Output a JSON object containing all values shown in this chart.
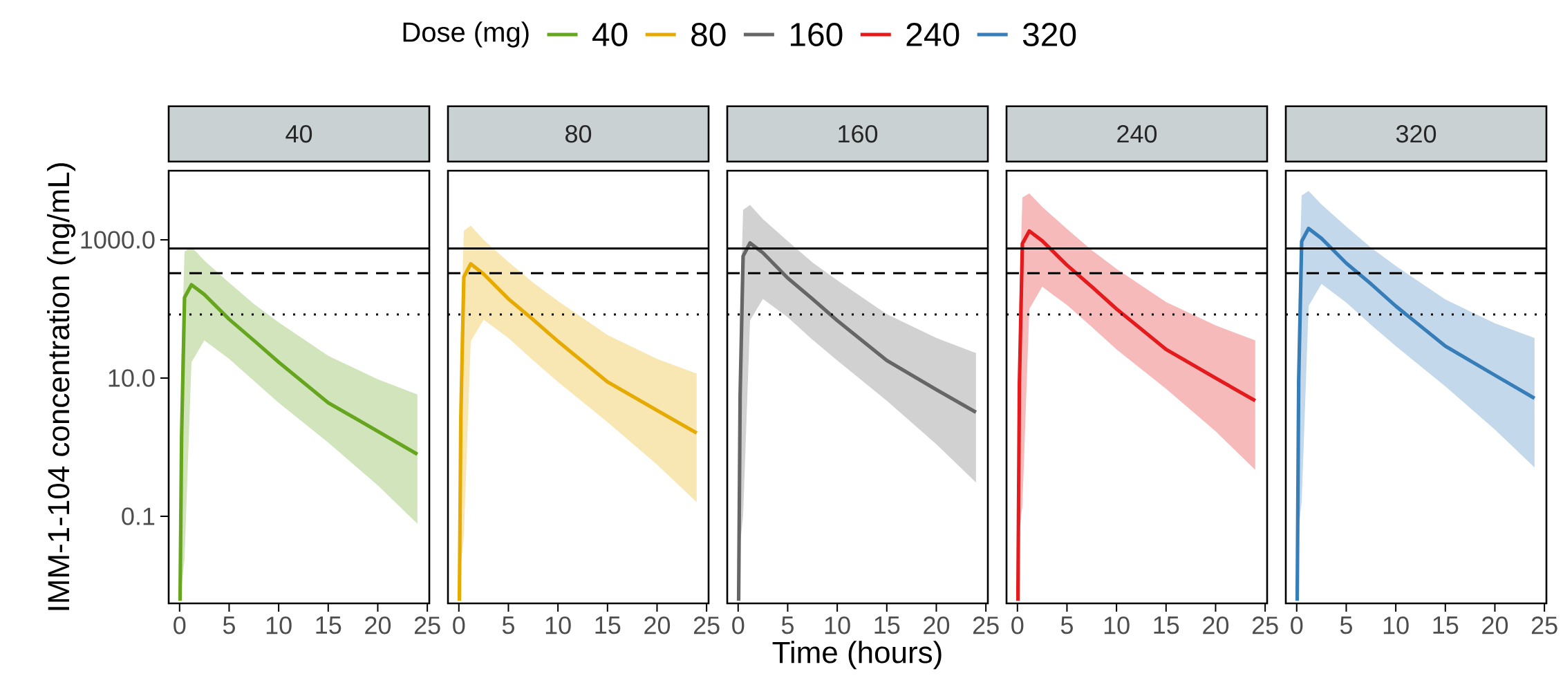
{
  "chart_data": [
    {
      "type": "line",
      "title": "40",
      "legend": "top",
      "legend_title": "Dose (mg)",
      "ylabel": "IMM-1-104 concentration (ng/mL)",
      "log": true,
      "series": [
        {
          "name": "40",
          "color": "#66a61e",
          "x": [
            0.05,
            0.2,
            0.5,
            1.2,
            2.5,
            5,
            7.5,
            10,
            15,
            20,
            24
          ],
          "values": [
            0.006,
            1.4,
            146,
            224,
            162,
            71,
            35,
            17,
            4.4,
            1.7,
            0.79
          ],
          "upper": [
            0.006,
            20,
            680,
            790,
            500,
            240,
            118,
            64,
            21,
            9.6,
            5.8
          ],
          "lower": [
            0.006,
            0.01,
            0.024,
            17,
            35,
            19,
            9.1,
            4.4,
            1.17,
            0.28,
            0.078
          ]
        }
      ],
      "xlim": [
        -1.1,
        25.2
      ],
      "xticks": [
        0,
        5,
        10,
        15,
        20,
        25
      ],
      "ylim": [
        0.0055,
        10000
      ],
      "yticks": [
        {
          "value": 0.1,
          "label": "0.1"
        },
        {
          "value": 10,
          "label": "10.0"
        },
        {
          "value": 1000,
          "label": "1000.0"
        }
      ],
      "ref_lines": [
        {
          "axis": "y",
          "value": 750,
          "color": "#000000",
          "line_style": "solid"
        },
        {
          "axis": "y",
          "value": 330,
          "color": "#000000",
          "line_style": "dashed"
        },
        {
          "axis": "y",
          "value": 83,
          "color": "#000000",
          "line_style": "dotted"
        }
      ]
    },
    {
      "type": "line",
      "title": "80",
      "log": true,
      "tick_labels": "x",
      "series": [
        {
          "name": "80",
          "color": "#e6ab02",
          "x": [
            0.05,
            0.2,
            0.5,
            1.2,
            2.5,
            5,
            7.5,
            10,
            15,
            20,
            24
          ],
          "values": [
            0.006,
            2.8,
            290,
            450,
            320,
            140,
            70,
            34,
            8.8,
            3.4,
            1.6
          ],
          "upper": [
            0.006,
            40,
            1360,
            1600,
            1000,
            480,
            240,
            130,
            42,
            19,
            11.6
          ],
          "lower": [
            0.006,
            0.02,
            0.05,
            34,
            70,
            38,
            18,
            8.8,
            2.3,
            0.56,
            0.16
          ]
        }
      ],
      "xlim": [
        -1.1,
        25.2
      ],
      "xticks": [
        0,
        5,
        10,
        15,
        20,
        25
      ],
      "ylim": [
        0.0055,
        10000
      ],
      "ref_lines": [
        {
          "axis": "y",
          "value": 750,
          "color": "#000000",
          "line_style": "solid"
        },
        {
          "axis": "y",
          "value": 330,
          "color": "#000000",
          "line_style": "dashed"
        },
        {
          "axis": "y",
          "value": 83,
          "color": "#000000",
          "line_style": "dotted"
        }
      ]
    },
    {
      "type": "line",
      "title": "160",
      "xlabel": "Time (hours)",
      "log": true,
      "tick_labels": "x",
      "series": [
        {
          "name": "160",
          "color": "#666666",
          "x": [
            0.05,
            0.2,
            0.5,
            1.2,
            2.5,
            5,
            7.5,
            10,
            15,
            20,
            24
          ],
          "values": [
            0.006,
            5.6,
            580,
            900,
            650,
            280,
            140,
            68,
            18,
            6.8,
            3.2
          ],
          "upper": [
            0.006,
            80,
            2700,
            3200,
            2000,
            960,
            470,
            260,
            84,
            38,
            23
          ],
          "lower": [
            0.006,
            0.04,
            0.1,
            68,
            140,
            76,
            36,
            18,
            4.7,
            1.1,
            0.31
          ]
        }
      ],
      "xlim": [
        -1.1,
        25.2
      ],
      "xticks": [
        0,
        5,
        10,
        15,
        20,
        25
      ],
      "ylim": [
        0.0055,
        10000
      ],
      "ref_lines": [
        {
          "axis": "y",
          "value": 750,
          "color": "#000000",
          "line_style": "solid"
        },
        {
          "axis": "y",
          "value": 330,
          "color": "#000000",
          "line_style": "dashed"
        },
        {
          "axis": "y",
          "value": 83,
          "color": "#000000",
          "line_style": "dotted"
        }
      ]
    },
    {
      "type": "line",
      "title": "240",
      "log": true,
      "tick_labels": "x",
      "series": [
        {
          "name": "240",
          "color": "#e41a1c",
          "x": [
            0.05,
            0.2,
            0.5,
            1.2,
            2.5,
            5,
            7.5,
            10,
            15,
            20,
            24
          ],
          "values": [
            0.006,
            8.4,
            880,
            1340,
            970,
            430,
            210,
            100,
            26,
            10,
            4.7
          ],
          "upper": [
            0.006,
            120,
            4100,
            4700,
            3000,
            1440,
            710,
            380,
            126,
            58,
            35
          ],
          "lower": [
            0.006,
            0.06,
            0.14,
            100,
            210,
            114,
            55,
            26,
            7,
            1.7,
            0.47
          ]
        }
      ],
      "xlim": [
        -1.1,
        25.2
      ],
      "xticks": [
        0,
        5,
        10,
        15,
        20,
        25
      ],
      "ylim": [
        0.0055,
        10000
      ],
      "ref_lines": [
        {
          "axis": "y",
          "value": 750,
          "color": "#000000",
          "line_style": "solid"
        },
        {
          "axis": "y",
          "value": 330,
          "color": "#000000",
          "line_style": "dashed"
        },
        {
          "axis": "y",
          "value": 83,
          "color": "#000000",
          "line_style": "dotted"
        }
      ]
    },
    {
      "type": "line",
      "title": "320",
      "log": true,
      "tick_labels": "x",
      "series": [
        {
          "name": "320",
          "color": "#377eb8",
          "x": [
            0.05,
            0.2,
            0.5,
            1.2,
            2.5,
            5,
            7.5,
            10,
            15,
            20,
            24
          ],
          "values": [
            0.006,
            9.1,
            950,
            1460,
            1050,
            460,
            230,
            110,
            29,
            11,
            5.1
          ],
          "upper": [
            0.006,
            130,
            4400,
            5100,
            3250,
            1560,
            770,
            420,
            137,
            62,
            38
          ],
          "lower": [
            0.006,
            0.065,
            0.16,
            110,
            230,
            124,
            59,
            29,
            7.6,
            1.8,
            0.51
          ]
        }
      ],
      "xlim": [
        -1.1,
        25.2
      ],
      "xticks": [
        0,
        5,
        10,
        15,
        20,
        25
      ],
      "ylim": [
        0.0055,
        10000
      ],
      "ref_lines": [
        {
          "axis": "y",
          "value": 750,
          "color": "#000000",
          "line_style": "solid"
        },
        {
          "axis": "y",
          "value": 330,
          "color": "#000000",
          "line_style": "dashed"
        },
        {
          "axis": "y",
          "value": 83,
          "color": "#000000",
          "line_style": "dotted"
        }
      ]
    }
  ]
}
